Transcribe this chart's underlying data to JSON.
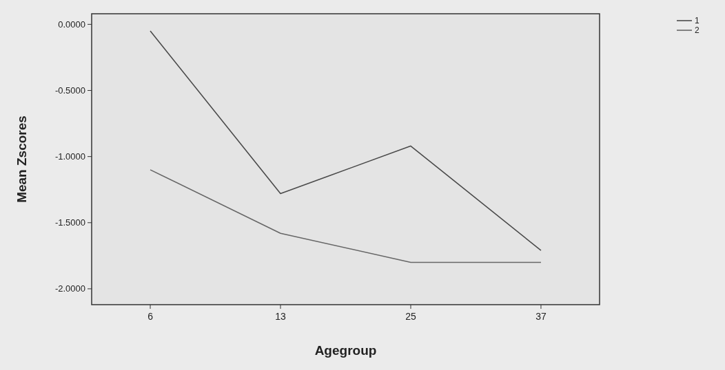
{
  "chart_data": {
    "type": "line",
    "xlabel": "Agegroup",
    "ylabel": "Mean Zscores",
    "categories": [
      "6",
      "13",
      "25",
      "37"
    ],
    "series": [
      {
        "name": "1",
        "color": "#4a4a4a",
        "values": [
          -0.05,
          -1.28,
          -0.92,
          -1.71
        ]
      },
      {
        "name": "2",
        "color": "#666666",
        "values": [
          -1.1,
          -1.58,
          -1.8,
          -1.8
        ]
      }
    ],
    "ylim": [
      -2.12,
      0.08
    ],
    "yticks": [
      {
        "value": 0,
        "label": "0.0000"
      },
      {
        "value": -0.5,
        "label": "-0.5000"
      },
      {
        "value": -1,
        "label": "-1.0000"
      },
      {
        "value": -1.5,
        "label": "-1.5000"
      },
      {
        "value": -2,
        "label": "-2.0000"
      }
    ],
    "legend": "top right",
    "grid": false,
    "marker": "none",
    "line_style": "solid"
  }
}
